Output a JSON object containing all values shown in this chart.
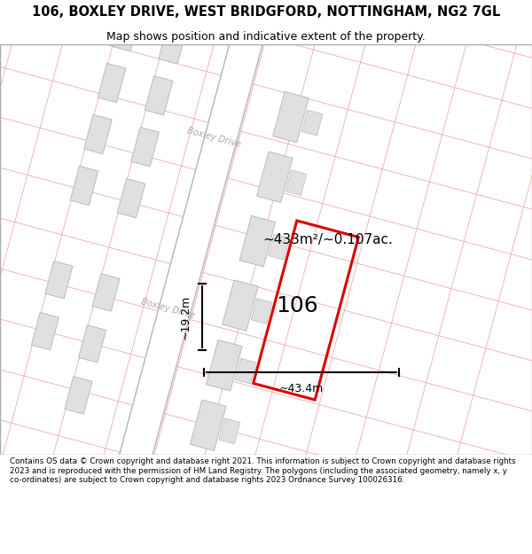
{
  "title_line1": "106, BOXLEY DRIVE, WEST BRIDGFORD, NOTTINGHAM, NG2 7GL",
  "title_line2": "Map shows position and indicative extent of the property.",
  "footer_text": "Contains OS data © Crown copyright and database right 2021. This information is subject to Crown copyright and database rights 2023 and is reproduced with the permission of HM Land Registry. The polygons (including the associated geometry, namely x, y co-ordinates) are subject to Crown copyright and database rights 2023 Ordnance Survey 100026316.",
  "map_bg": "#f2f2f2",
  "road_color": "#ffffff",
  "road_border_color": "#bbbbbb",
  "building_fill": "#e0e0e0",
  "building_edge": "#bbbbbb",
  "plot_outline_color": "#dd0000",
  "street_label": "Boxley Drive",
  "property_label": "106",
  "area_label": "~433m²/~0.107ac.",
  "width_label": "~43.4m",
  "height_label": "~19.2m",
  "grid_line_color": "#f5aaaa",
  "background_color": "#ffffff"
}
